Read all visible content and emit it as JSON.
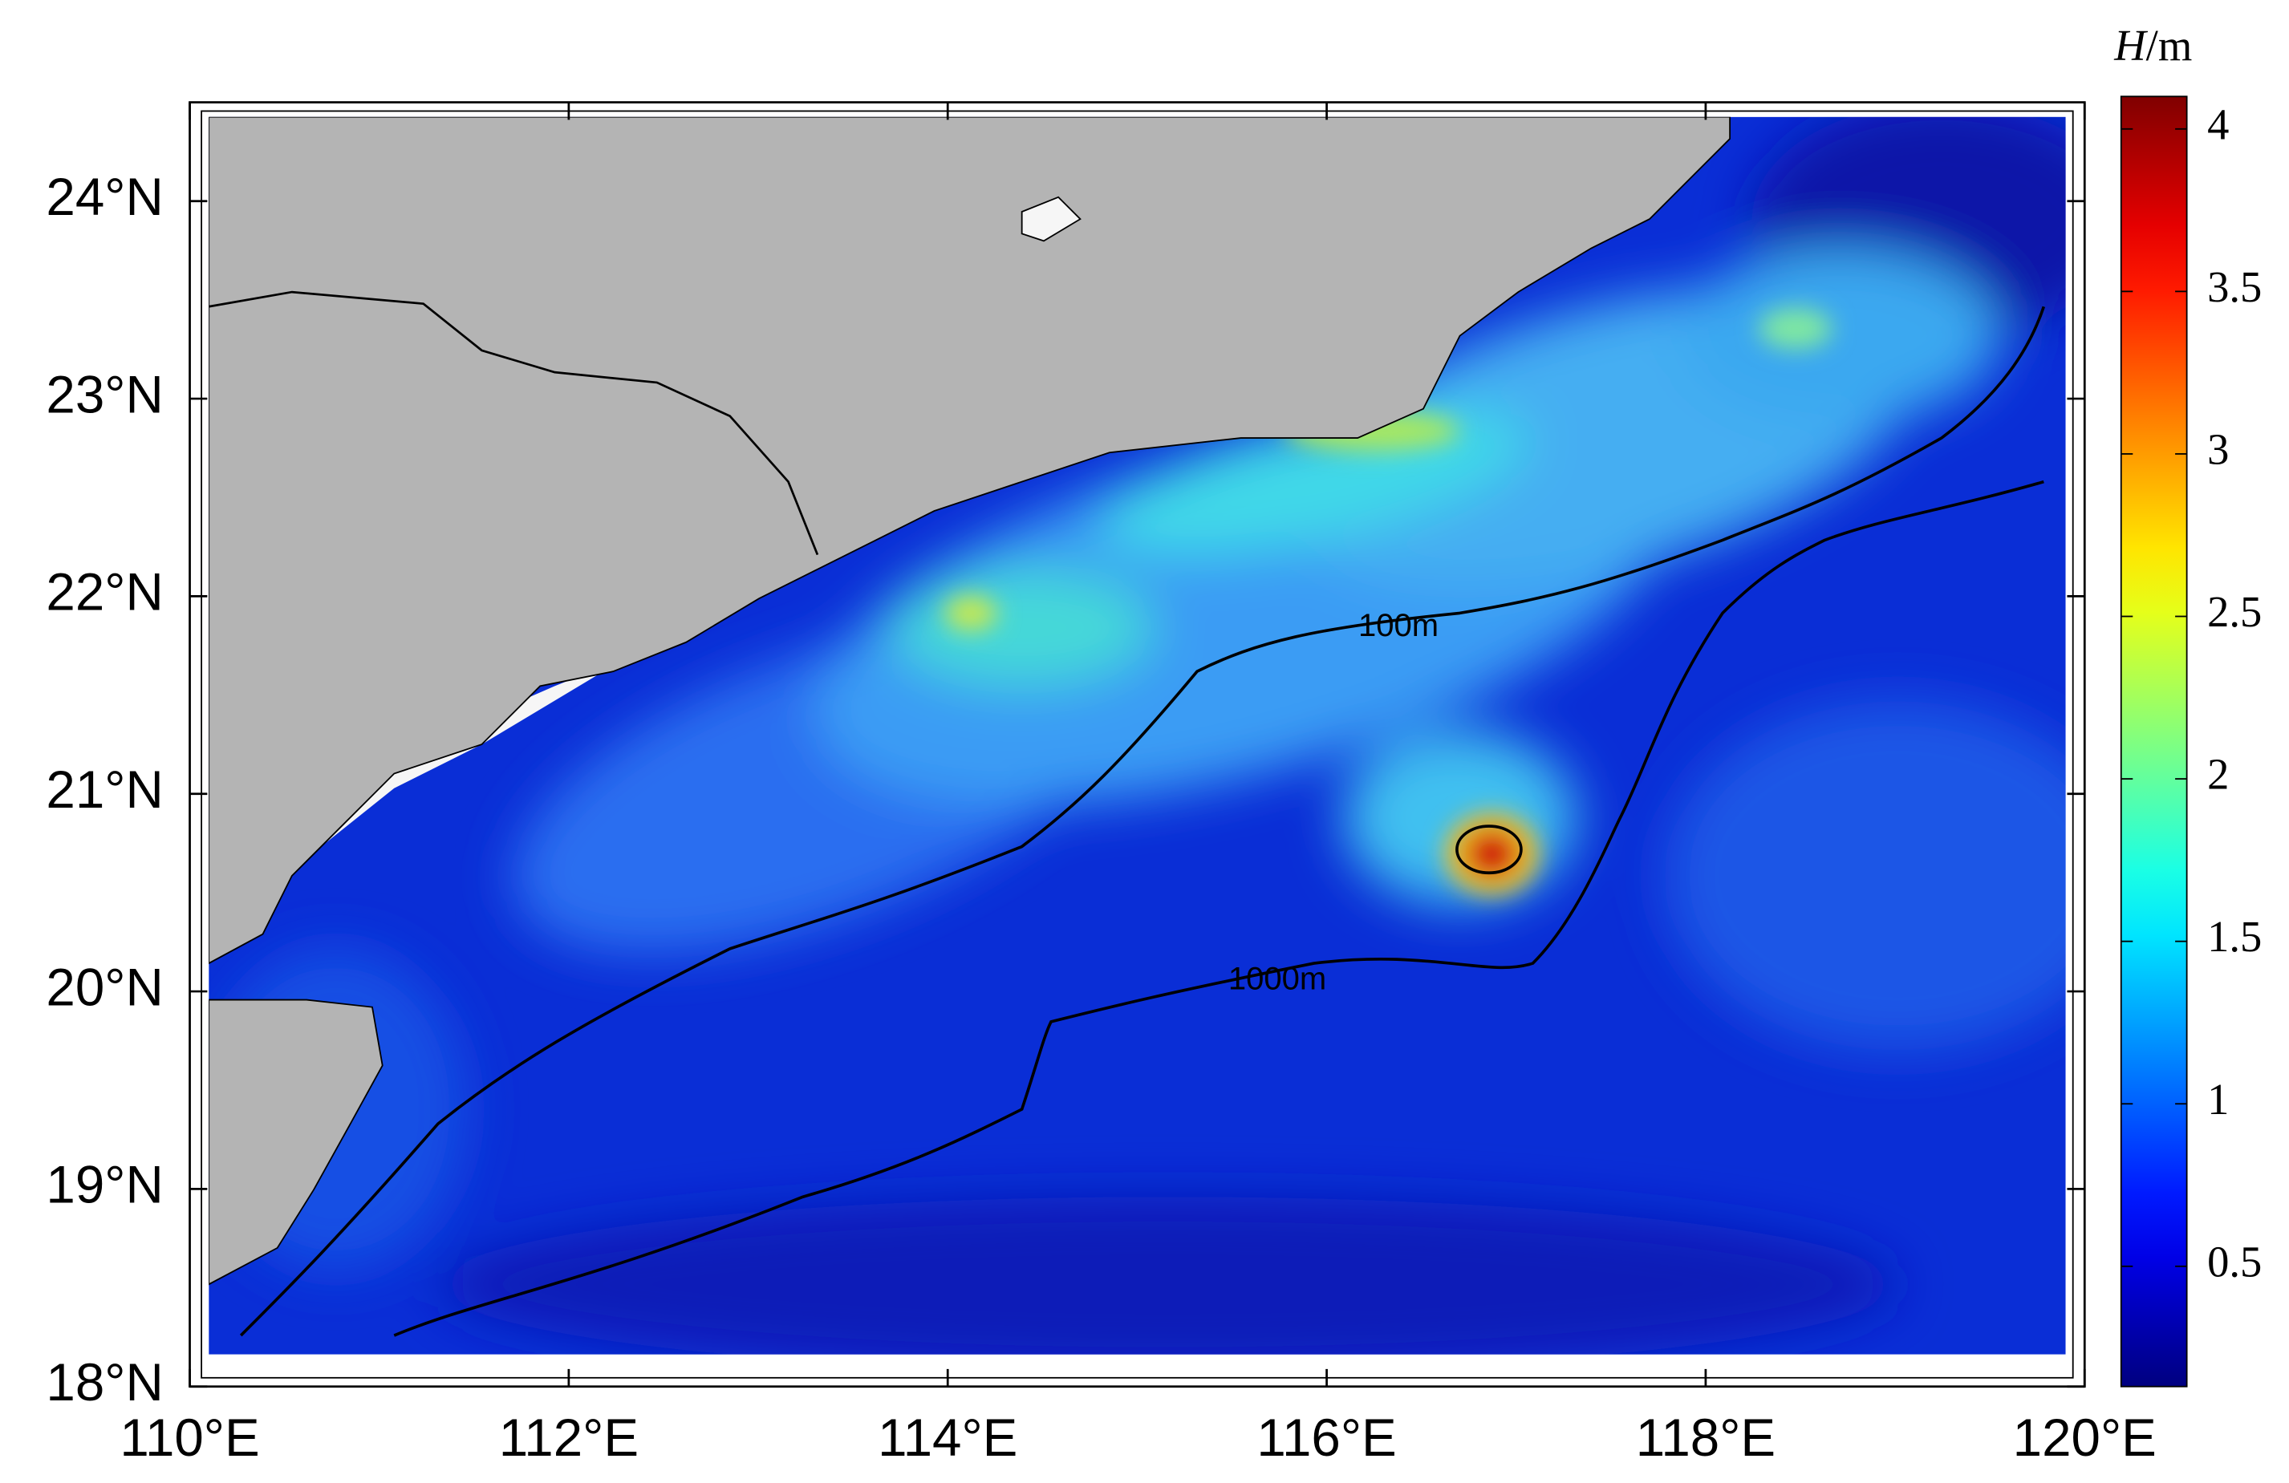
{
  "chart_data": {
    "type": "heatmap-map",
    "xlim": [
      110,
      120
    ],
    "ylim": [
      18,
      24.5
    ],
    "xticks": [
      {
        "value": 110,
        "label": "110°E"
      },
      {
        "value": 112,
        "label": "112°E"
      },
      {
        "value": 114,
        "label": "114°E"
      },
      {
        "value": 116,
        "label": "116°E"
      },
      {
        "value": 118,
        "label": "118°E"
      },
      {
        "value": 120,
        "label": "120°E"
      }
    ],
    "yticks": [
      {
        "value": 18,
        "label": "18°N"
      },
      {
        "value": 19,
        "label": "19°N"
      },
      {
        "value": 20,
        "label": "20°N"
      },
      {
        "value": 21,
        "label": "21°N"
      },
      {
        "value": 22,
        "label": "22°N"
      },
      {
        "value": 23,
        "label": "23°N"
      },
      {
        "value": 24,
        "label": "24°N"
      }
    ],
    "colorbar": {
      "symbol": "H",
      "unit": "/m",
      "colormap": "jet",
      "clim": [
        0.13,
        4.1
      ],
      "ticks": [
        0.5,
        1,
        1.5,
        2,
        2.5,
        3,
        3.5,
        4
      ]
    },
    "contour_labels": [
      "100m",
      "1000m"
    ]
  }
}
